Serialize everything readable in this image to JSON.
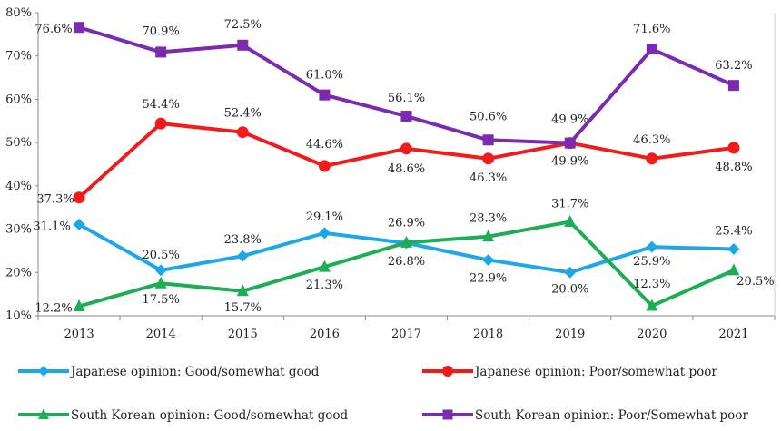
{
  "chart_data": {
    "type": "line",
    "title": "",
    "xlabel": "",
    "ylabel": "",
    "ylim": [
      10,
      80
    ],
    "y_tick_step": 10,
    "y_tick_suffix": "%",
    "categories": [
      "2013",
      "2014",
      "2015",
      "2016",
      "2017",
      "2018",
      "2019",
      "2020",
      "2021"
    ],
    "legend_position": "bottom",
    "series": [
      {
        "name": "Japanese opinion: Good/somewhat good",
        "color": "#1EA7E8",
        "marker": "diamond",
        "values": [
          31.1,
          20.5,
          23.8,
          29.1,
          26.8,
          22.9,
          20.0,
          25.9,
          25.4
        ],
        "labels": [
          "31.1%",
          "20.5%",
          "23.8%",
          "29.1%",
          "26.8%",
          "22.9%",
          "20.0%",
          "25.9%",
          "25.4%"
        ]
      },
      {
        "name": "Japanese opinion: Poor/somewhat poor",
        "color": "#F21B1B",
        "marker": "circle",
        "values": [
          37.3,
          54.4,
          52.4,
          44.6,
          48.6,
          46.3,
          49.9,
          46.3,
          48.8
        ],
        "labels": [
          "37.3%",
          "54.4%",
          "52.4%",
          "44.6%",
          "48.6%",
          "46.3%",
          "49.9%",
          "46.3%",
          "48.8%"
        ]
      },
      {
        "name": "South Korean opinion: Good/somewhat good",
        "color": "#1CAD55",
        "marker": "triangle",
        "values": [
          12.2,
          17.5,
          15.7,
          21.3,
          26.9,
          28.3,
          31.7,
          12.3,
          20.5
        ],
        "labels": [
          "12.2%",
          "17.5%",
          "15.7%",
          "21.3%",
          "26.9%",
          "28.3%",
          "31.7%",
          "12.3%",
          "20.5%"
        ]
      },
      {
        "name": "South Korean opinion: Poor/Somewhat poor",
        "color": "#7A2BB0",
        "marker": "square",
        "values": [
          76.6,
          70.9,
          72.5,
          61.0,
          56.1,
          50.6,
          49.9,
          71.6,
          63.2
        ],
        "labels": [
          "76.6%",
          "70.9%",
          "72.5%",
          "61.0%",
          "56.1%",
          "50.6%",
          "49.9%",
          "71.6%",
          "63.2%"
        ]
      }
    ]
  }
}
